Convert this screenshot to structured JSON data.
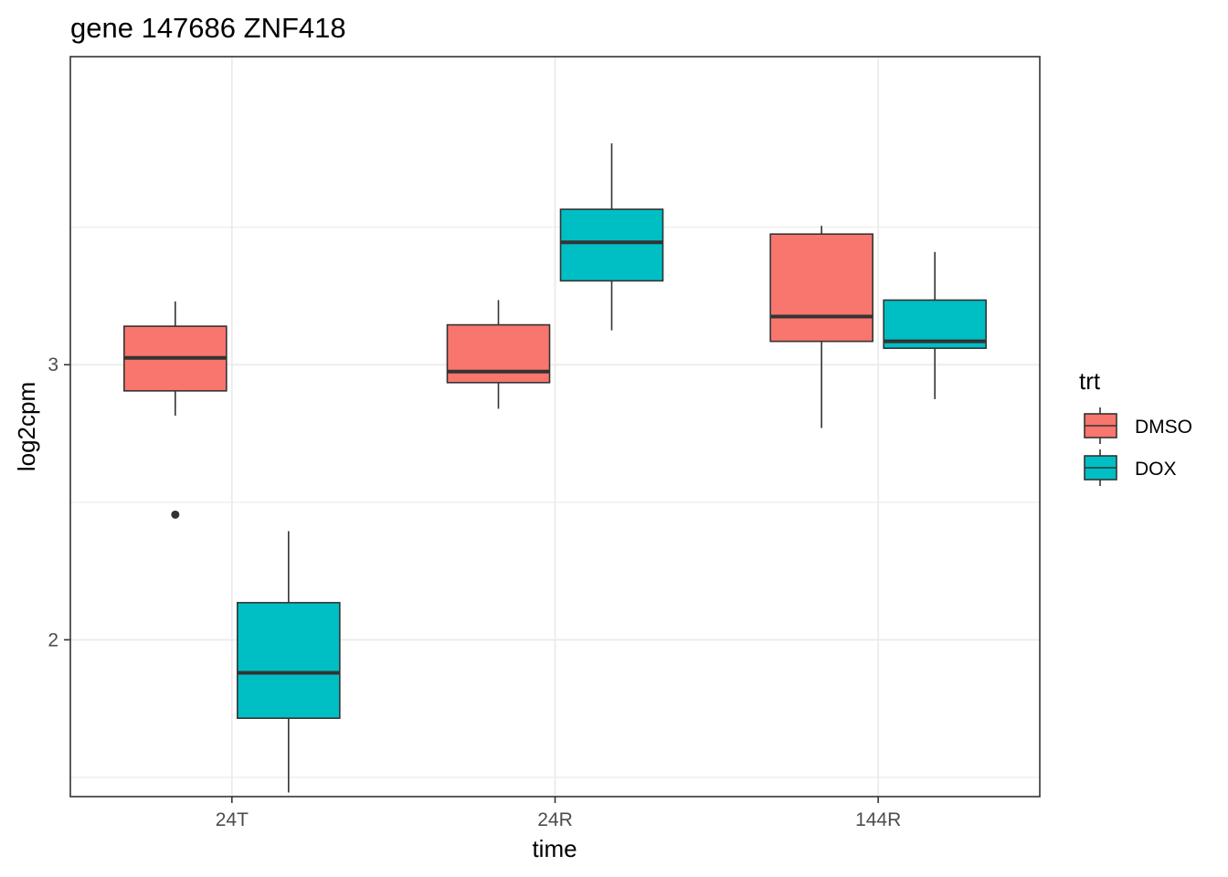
{
  "chart_data": {
    "type": "boxplot",
    "title": "gene 147686 ZNF418",
    "xlabel": "time",
    "ylabel": "log2cpm",
    "categories": [
      "24T",
      "24R",
      "144R"
    ],
    "ylim": [
      1.43,
      4.12
    ],
    "y_ticks": [
      2,
      3
    ],
    "y_tick_labels": [
      "2",
      "3"
    ],
    "grid": true,
    "legend": {
      "title": "trt",
      "position": "right",
      "entries": [
        "DMSO",
        "DOX"
      ]
    },
    "series": [
      {
        "name": "DMSO",
        "color": "#F8766D",
        "boxes": [
          {
            "category": "24T",
            "min": 2.815,
            "q1": 2.905,
            "median": 3.025,
            "q3": 3.14,
            "max": 3.23,
            "outliers": [
              2.455
            ]
          },
          {
            "category": "24R",
            "min": 2.84,
            "q1": 2.935,
            "median": 2.975,
            "q3": 3.145,
            "max": 3.235,
            "outliers": []
          },
          {
            "category": "144R",
            "min": 2.77,
            "q1": 3.085,
            "median": 3.175,
            "q3": 3.475,
            "max": 3.505,
            "outliers": []
          }
        ]
      },
      {
        "name": "DOX",
        "color": "#00BFC4",
        "boxes": [
          {
            "category": "24T",
            "min": 1.445,
            "q1": 1.715,
            "median": 1.88,
            "q3": 2.135,
            "max": 2.395,
            "outliers": []
          },
          {
            "category": "24R",
            "min": 3.125,
            "q1": 3.305,
            "median": 3.445,
            "q3": 3.565,
            "max": 3.805,
            "outliers": []
          },
          {
            "category": "144R",
            "min": 2.875,
            "q1": 3.06,
            "median": 3.085,
            "q3": 3.235,
            "max": 3.41,
            "outliers": []
          }
        ]
      }
    ]
  }
}
